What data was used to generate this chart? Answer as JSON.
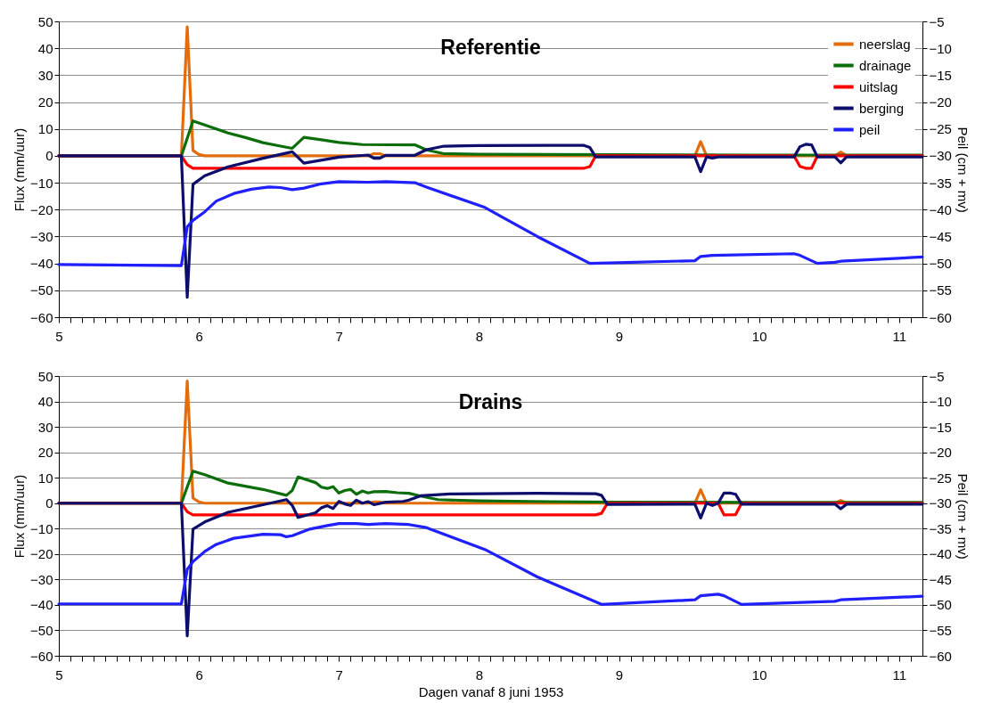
{
  "chart_data": [
    {
      "type": "line",
      "title": "Referentie",
      "ylabel": "Flux (mm/uur)",
      "y2label": "Peil (cm + mv)",
      "xlim": [
        5,
        11.1667
      ],
      "ylim": [
        -60,
        50
      ],
      "y2lim": [
        -60,
        -5
      ],
      "xticks": [
        5,
        {
          "value": 5.0833,
          "label": null
        },
        {
          "value": 5.1667,
          "label": null
        },
        {
          "value": 5.25,
          "label": null
        },
        {
          "value": 5.3333,
          "label": null
        },
        {
          "value": 5.4167,
          "label": null
        },
        {
          "value": 5.5,
          "label": null
        },
        {
          "value": 5.5833,
          "label": null
        },
        {
          "value": 5.6667,
          "label": null
        },
        {
          "value": 5.75,
          "label": null
        },
        {
          "value": 5.8333,
          "label": null
        },
        {
          "value": 5.9167,
          "label": null
        },
        6,
        {
          "value": 6.0833,
          "label": null
        },
        {
          "value": 6.1667,
          "label": null
        },
        {
          "value": 6.25,
          "label": null
        },
        {
          "value": 6.3333,
          "label": null
        },
        {
          "value": 6.4167,
          "label": null
        },
        {
          "value": 6.5,
          "label": null
        },
        {
          "value": 6.5833,
          "label": null
        },
        {
          "value": 6.6667,
          "label": null
        },
        {
          "value": 6.75,
          "label": null
        },
        {
          "value": 6.8333,
          "label": null
        },
        {
          "value": 6.9167,
          "label": null
        },
        7,
        {
          "value": 7.0833,
          "label": null
        },
        {
          "value": 7.1667,
          "label": null
        },
        {
          "value": 7.25,
          "label": null
        },
        {
          "value": 7.3333,
          "label": null
        },
        {
          "value": 7.4167,
          "label": null
        },
        {
          "value": 7.5,
          "label": null
        },
        {
          "value": 7.5833,
          "label": null
        },
        {
          "value": 7.6667,
          "label": null
        },
        {
          "value": 7.75,
          "label": null
        },
        {
          "value": 7.8333,
          "label": null
        },
        {
          "value": 7.9167,
          "label": null
        },
        8,
        {
          "value": 8.0833,
          "label": null
        },
        {
          "value": 8.1667,
          "label": null
        },
        {
          "value": 8.25,
          "label": null
        },
        {
          "value": 8.3333,
          "label": null
        },
        {
          "value": 8.4167,
          "label": null
        },
        {
          "value": 8.5,
          "label": null
        },
        {
          "value": 8.5833,
          "label": null
        },
        {
          "value": 8.6667,
          "label": null
        },
        {
          "value": 8.75,
          "label": null
        },
        {
          "value": 8.8333,
          "label": null
        },
        {
          "value": 8.9167,
          "label": null
        },
        9,
        {
          "value": 9.0833,
          "label": null
        },
        {
          "value": 9.1667,
          "label": null
        },
        {
          "value": 9.25,
          "label": null
        },
        {
          "value": 9.3333,
          "label": null
        },
        {
          "value": 9.4167,
          "label": null
        },
        {
          "value": 9.5,
          "label": null
        },
        {
          "value": 9.5833,
          "label": null
        },
        {
          "value": 9.6667,
          "label": null
        },
        {
          "value": 9.75,
          "label": null
        },
        {
          "value": 9.8333,
          "label": null
        },
        {
          "value": 9.9167,
          "label": null
        },
        10,
        {
          "value": 10.0833,
          "label": null
        },
        {
          "value": 10.1667,
          "label": null
        },
        {
          "value": 10.25,
          "label": null
        },
        {
          "value": 10.3333,
          "label": null
        },
        {
          "value": 10.4167,
          "label": null
        },
        {
          "value": 10.5,
          "label": null
        },
        {
          "value": 10.5833,
          "label": null
        },
        {
          "value": 10.6667,
          "label": null
        },
        {
          "value": 10.75,
          "label": null
        },
        {
          "value": 10.8333,
          "label": null
        },
        {
          "value": 10.9167,
          "label": null
        },
        11,
        {
          "value": 11.0833,
          "label": null
        }
      ],
      "yticks": [
        -60,
        -50,
        -40,
        -30,
        -20,
        -10,
        0,
        10,
        20,
        30,
        40,
        50
      ],
      "y2ticks": [
        -60,
        -55,
        -50,
        -45,
        -40,
        -35,
        -30,
        -25,
        -20,
        -15,
        -10,
        -5
      ],
      "grid": "y",
      "legend": "top right",
      "series": [
        {
          "name": "neerslag",
          "color": "#e46c0a",
          "x": [
            5,
            5.875,
            5.917,
            5.958,
            6,
            6.042,
            7.208,
            7.25,
            7.292,
            7.333,
            9.542,
            9.583,
            9.625,
            9.667,
            9.708,
            10.542,
            10.583,
            10.625,
            11.1667
          ],
          "values": [
            0,
            0,
            48,
            2,
            0.5,
            0,
            0,
            0.8,
            0.8,
            0,
            0,
            5.3,
            0,
            0.3,
            0,
            0,
            1.4,
            0,
            0
          ]
        },
        {
          "name": "drainage",
          "color": "#0b6e0b",
          "x": [
            5,
            5.875,
            5.958,
            6.042,
            6.125,
            6.208,
            6.333,
            6.458,
            6.583,
            6.667,
            6.75,
            6.875,
            7,
            7.167,
            7.542,
            7.625,
            7.75,
            8,
            8.5,
            9,
            10,
            11.1667
          ],
          "values": [
            0,
            0,
            13,
            11.5,
            10,
            8.5,
            6.8,
            4.9,
            3.6,
            2.8,
            6.9,
            6,
            5,
            4.2,
            4.1,
            2.2,
            0.8,
            0.6,
            0.5,
            0.4,
            0.3,
            0.3
          ]
        },
        {
          "name": "uitslag",
          "color": "#ff0000",
          "x": [
            5,
            5.875,
            5.917,
            5.958,
            6.042,
            8.75,
            8.792,
            8.833,
            9,
            10.25,
            10.292,
            10.333,
            10.375,
            10.417,
            11.1667
          ],
          "values": [
            0,
            0,
            -3.3,
            -4.6,
            -4.6,
            -4.6,
            -4,
            0,
            0,
            0,
            -3.9,
            -4.6,
            -4.6,
            0,
            0
          ]
        },
        {
          "name": "berging",
          "color": "#0d0d6b",
          "x": [
            5,
            5.875,
            5.917,
            5.958,
            6.042,
            6.208,
            6.458,
            6.667,
            6.75,
            7.0,
            7.208,
            7.25,
            7.292,
            7.333,
            7.542,
            7.625,
            7.75,
            8,
            8.5,
            8.75,
            8.792,
            8.833,
            9.542,
            9.583,
            9.625,
            9.667,
            9.708,
            10.25,
            10.292,
            10.333,
            10.375,
            10.417,
            10.542,
            10.583,
            10.625,
            11.1667
          ],
          "values": [
            0,
            0,
            -52.6,
            -10.6,
            -7.4,
            -4.1,
            -0.9,
            1.5,
            -2.7,
            -0.5,
            0.3,
            -0.9,
            -0.9,
            0.2,
            0.2,
            2.3,
            3.6,
            3.8,
            3.9,
            3.9,
            3.1,
            -0.4,
            -0.4,
            -5.9,
            -0.4,
            -0.8,
            -0.4,
            -0.4,
            3.4,
            4.3,
            4.1,
            -0.4,
            -0.4,
            -2.6,
            -0.4,
            -0.4
          ]
        },
        {
          "name": "peil",
          "color": "#1f1fff",
          "axis": "y2",
          "x": [
            5,
            5.875,
            5.917,
            5.958,
            6.042,
            6.125,
            6.25,
            6.375,
            6.5,
            6.583,
            6.667,
            6.75,
            6.875,
            7.0,
            7.208,
            7.333,
            7.542,
            7.625,
            8.042,
            8.417,
            8.792,
            9.542,
            9.583,
            9.667,
            10.25,
            10.292,
            10.417,
            10.542,
            10.583,
            11.1667
          ],
          "values": [
            -50.2,
            -50.4,
            -43.2,
            -42.0,
            -40.4,
            -38.4,
            -37.0,
            -36.2,
            -35.8,
            -35.9,
            -36.3,
            -36.0,
            -35.2,
            -34.8,
            -34.9,
            -34.8,
            -35.0,
            -35.8,
            -39.6,
            -45.0,
            -50.0,
            -49.5,
            -48.7,
            -48.5,
            -48.2,
            -48.5,
            -50.0,
            -49.8,
            -49.6,
            -48.8
          ]
        }
      ]
    },
    {
      "type": "line",
      "title": "Drains",
      "xlabel": "Dagen vanaf 8 juni  1953",
      "ylabel": "Flux (mm/uur)",
      "y2label": "Peil (cm + mv)",
      "xlim": [
        5,
        11.1667
      ],
      "ylim": [
        -60,
        50
      ],
      "y2lim": [
        -60,
        -5
      ],
      "xticks": [
        5,
        {
          "value": 5.0833,
          "label": null
        },
        {
          "value": 5.1667,
          "label": null
        },
        {
          "value": 5.25,
          "label": null
        },
        {
          "value": 5.3333,
          "label": null
        },
        {
          "value": 5.4167,
          "label": null
        },
        {
          "value": 5.5,
          "label": null
        },
        {
          "value": 5.5833,
          "label": null
        },
        {
          "value": 5.6667,
          "label": null
        },
        {
          "value": 5.75,
          "label": null
        },
        {
          "value": 5.8333,
          "label": null
        },
        {
          "value": 5.9167,
          "label": null
        },
        6,
        {
          "value": 6.0833,
          "label": null
        },
        {
          "value": 6.1667,
          "label": null
        },
        {
          "value": 6.25,
          "label": null
        },
        {
          "value": 6.3333,
          "label": null
        },
        {
          "value": 6.4167,
          "label": null
        },
        {
          "value": 6.5,
          "label": null
        },
        {
          "value": 6.5833,
          "label": null
        },
        {
          "value": 6.6667,
          "label": null
        },
        {
          "value": 6.75,
          "label": null
        },
        {
          "value": 6.8333,
          "label": null
        },
        {
          "value": 6.9167,
          "label": null
        },
        7,
        {
          "value": 7.0833,
          "label": null
        },
        {
          "value": 7.1667,
          "label": null
        },
        {
          "value": 7.25,
          "label": null
        },
        {
          "value": 7.3333,
          "label": null
        },
        {
          "value": 7.4167,
          "label": null
        },
        {
          "value": 7.5,
          "label": null
        },
        {
          "value": 7.5833,
          "label": null
        },
        {
          "value": 7.6667,
          "label": null
        },
        {
          "value": 7.75,
          "label": null
        },
        {
          "value": 7.8333,
          "label": null
        },
        {
          "value": 7.9167,
          "label": null
        },
        8,
        {
          "value": 8.0833,
          "label": null
        },
        {
          "value": 8.1667,
          "label": null
        },
        {
          "value": 8.25,
          "label": null
        },
        {
          "value": 8.3333,
          "label": null
        },
        {
          "value": 8.4167,
          "label": null
        },
        {
          "value": 8.5,
          "label": null
        },
        {
          "value": 8.5833,
          "label": null
        },
        {
          "value": 8.6667,
          "label": null
        },
        {
          "value": 8.75,
          "label": null
        },
        {
          "value": 8.8333,
          "label": null
        },
        {
          "value": 8.9167,
          "label": null
        },
        9,
        {
          "value": 9.0833,
          "label": null
        },
        {
          "value": 9.1667,
          "label": null
        },
        {
          "value": 9.25,
          "label": null
        },
        {
          "value": 9.3333,
          "label": null
        },
        {
          "value": 9.4167,
          "label": null
        },
        {
          "value": 9.5,
          "label": null
        },
        {
          "value": 9.5833,
          "label": null
        },
        {
          "value": 9.6667,
          "label": null
        },
        {
          "value": 9.75,
          "label": null
        },
        {
          "value": 9.8333,
          "label": null
        },
        {
          "value": 9.9167,
          "label": null
        },
        10,
        {
          "value": 10.0833,
          "label": null
        },
        {
          "value": 10.1667,
          "label": null
        },
        {
          "value": 10.25,
          "label": null
        },
        {
          "value": 10.3333,
          "label": null
        },
        {
          "value": 10.4167,
          "label": null
        },
        {
          "value": 10.5,
          "label": null
        },
        {
          "value": 10.5833,
          "label": null
        },
        {
          "value": 10.6667,
          "label": null
        },
        {
          "value": 10.75,
          "label": null
        },
        {
          "value": 10.8333,
          "label": null
        },
        {
          "value": 10.9167,
          "label": null
        },
        11,
        {
          "value": 11.0833,
          "label": null
        }
      ],
      "yticks": [
        -60,
        -50,
        -40,
        -30,
        -20,
        -10,
        0,
        10,
        20,
        30,
        40,
        50
      ],
      "y2ticks": [
        -60,
        -55,
        -50,
        -45,
        -40,
        -35,
        -30,
        -25,
        -20,
        -15,
        -10,
        -5
      ],
      "grid": "y",
      "series": [
        {
          "color": "#e46c0a",
          "x": [
            5,
            5.875,
            5.917,
            5.958,
            6,
            6.042,
            7.208,
            7.25,
            7.292,
            7.333,
            9.542,
            9.583,
            9.625,
            9.667,
            9.708,
            10.542,
            10.583,
            10.625,
            11.1667
          ],
          "values": [
            0,
            0,
            48,
            2,
            0.5,
            0,
            0,
            0.5,
            0.5,
            0,
            0,
            5.3,
            0,
            0.3,
            0,
            0,
            1.1,
            0,
            0
          ]
        },
        {
          "color": "#0b6e0b",
          "x": [
            5,
            5.875,
            5.958,
            6.042,
            6.208,
            6.458,
            6.625,
            6.667,
            6.708,
            6.833,
            6.875,
            6.917,
            6.958,
            7.0,
            7.042,
            7.083,
            7.125,
            7.167,
            7.208,
            7.25,
            7.333,
            7.417,
            7.5,
            7.583,
            7.708,
            8,
            8.5,
            9,
            10,
            11.1667
          ],
          "values": [
            0,
            0,
            12.6,
            11.2,
            7.9,
            5.4,
            3.1,
            5.0,
            10.3,
            8.1,
            6.3,
            5.8,
            6.5,
            4.0,
            5.0,
            5.4,
            3.5,
            4.8,
            4.0,
            4.5,
            4.6,
            4.1,
            3.9,
            2.8,
            1.4,
            0.9,
            0.6,
            0.4,
            0.3,
            0.3
          ]
        },
        {
          "color": "#ff0000",
          "x": [
            5,
            5.875,
            5.917,
            5.958,
            6.042,
            8.833,
            8.875,
            8.917,
            9.708,
            9.75,
            9.833,
            9.875,
            11.1667
          ],
          "values": [
            0,
            0,
            -3.4,
            -4.6,
            -4.6,
            -4.6,
            -4.0,
            0,
            0,
            -4.6,
            -4.5,
            0,
            0
          ]
        },
        {
          "color": "#0d0d6b",
          "x": [
            5,
            5.875,
            5.917,
            5.958,
            6.042,
            6.208,
            6.458,
            6.625,
            6.667,
            6.708,
            6.833,
            6.875,
            6.917,
            6.958,
            7.0,
            7.042,
            7.083,
            7.125,
            7.167,
            7.208,
            7.25,
            7.333,
            7.458,
            7.5,
            7.583,
            7.792,
            8.417,
            8.833,
            8.875,
            8.917,
            9.542,
            9.583,
            9.625,
            9.667,
            9.708,
            9.75,
            9.792,
            9.833,
            9.875,
            10.542,
            10.583,
            10.625,
            11.1667
          ],
          "values": [
            0,
            0,
            -52.2,
            -10.2,
            -7.4,
            -3.6,
            -0.6,
            1.4,
            -0.9,
            -5.6,
            -3.8,
            -1.8,
            -1.0,
            -2.1,
            0.7,
            -0.3,
            -0.9,
            1.2,
            0,
            0.6,
            -0.6,
            0.4,
            0.7,
            1.2,
            2.9,
            3.6,
            3.9,
            3.7,
            3.1,
            -0.5,
            -0.4,
            -5.8,
            0,
            -0.9,
            0,
            4.0,
            4.0,
            3.5,
            -0.4,
            -0.4,
            -2.2,
            -0.4,
            -0.4
          ]
        },
        {
          "color": "#1f1fff",
          "axis": "y2",
          "x": [
            5,
            5.875,
            5.917,
            5.958,
            6.042,
            6.125,
            6.25,
            6.458,
            6.583,
            6.625,
            6.667,
            6.792,
            6.917,
            7.0,
            7.125,
            7.208,
            7.333,
            7.5,
            7.625,
            8.042,
            8.417,
            8.875,
            9.542,
            9.583,
            9.708,
            9.75,
            9.875,
            10.542,
            10.583,
            11.1667
          ],
          "values": [
            -49.8,
            -49.8,
            -43.0,
            -41.5,
            -39.5,
            -38.1,
            -36.9,
            -36.1,
            -36.2,
            -36.6,
            -36.4,
            -35.1,
            -34.4,
            -34.0,
            -34.0,
            -34.2,
            -34.0,
            -34.2,
            -34.8,
            -39.1,
            -44.5,
            -49.9,
            -49.0,
            -48.2,
            -47.9,
            -48.2,
            -49.9,
            -49.3,
            -49.0,
            -48.3
          ]
        }
      ]
    }
  ]
}
